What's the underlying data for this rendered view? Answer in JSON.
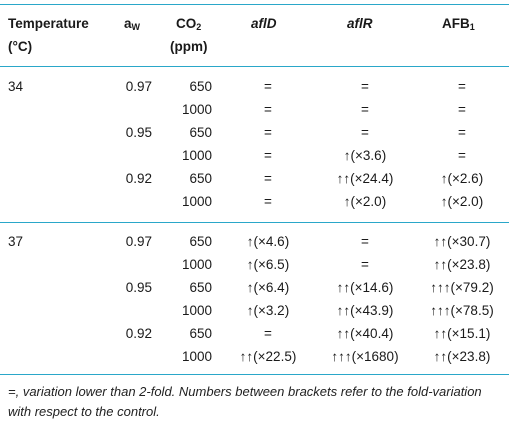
{
  "headers": {
    "temperature": "Temperature",
    "temperature_unit": "(°C)",
    "aw": "a",
    "aw_sub": "W",
    "co2": "CO",
    "co2_sub": "2",
    "co2_unit": "(ppm)",
    "aflD": "aflD",
    "aflR": "aflR",
    "afb": "AFB",
    "afb_sub": "1"
  },
  "rows": [
    {
      "temp": "34",
      "aw": "0.97",
      "co2": "650",
      "aflD": "=",
      "aflR": "=",
      "afb": "="
    },
    {
      "temp": "",
      "aw": "",
      "co2": "1000",
      "aflD": "=",
      "aflR": "=",
      "afb": "="
    },
    {
      "temp": "",
      "aw": "0.95",
      "co2": "650",
      "aflD": "=",
      "aflR": "=",
      "afb": "="
    },
    {
      "temp": "",
      "aw": "",
      "co2": "1000",
      "aflD": "=",
      "aflR": "↑(×3.6)",
      "afb": "="
    },
    {
      "temp": "",
      "aw": "0.92",
      "co2": "650",
      "aflD": "=",
      "aflR": "↑↑(×24.4)",
      "afb": "↑(×2.6)"
    },
    {
      "temp": "",
      "aw": "",
      "co2": "1000",
      "aflD": "=",
      "aflR": "↑(×2.0)",
      "afb": "↑(×2.0)"
    },
    {
      "temp": "37",
      "aw": "0.97",
      "co2": "650",
      "aflD": "↑(×4.6)",
      "aflR": "=",
      "afb": "↑↑(×30.7)"
    },
    {
      "temp": "",
      "aw": "",
      "co2": "1000",
      "aflD": "↑(×6.5)",
      "aflR": "=",
      "afb": "↑↑(×23.8)"
    },
    {
      "temp": "",
      "aw": "0.95",
      "co2": "650",
      "aflD": "↑(×6.4)",
      "aflR": "↑↑(×14.6)",
      "afb": "↑↑↑(×79.2)"
    },
    {
      "temp": "",
      "aw": "",
      "co2": "1000",
      "aflD": "↑(×3.2)",
      "aflR": "↑↑(×43.9)",
      "afb": "↑↑↑(×78.5)"
    },
    {
      "temp": "",
      "aw": "0.92",
      "co2": "650",
      "aflD": "=",
      "aflR": "↑↑(×40.4)",
      "afb": "↑↑(×15.1)"
    },
    {
      "temp": "",
      "aw": "",
      "co2": "1000",
      "aflD": "↑↑(×22.5)",
      "aflR": "↑↑↑(×1680)",
      "afb": "↑↑(×23.8)"
    }
  ],
  "footnote": "=, variation lower than 2-fold. Numbers between brackets refer to the fold-variation with respect to the control.",
  "colors": {
    "rule": "#2aa7c9",
    "text": "#1a1a1a"
  }
}
